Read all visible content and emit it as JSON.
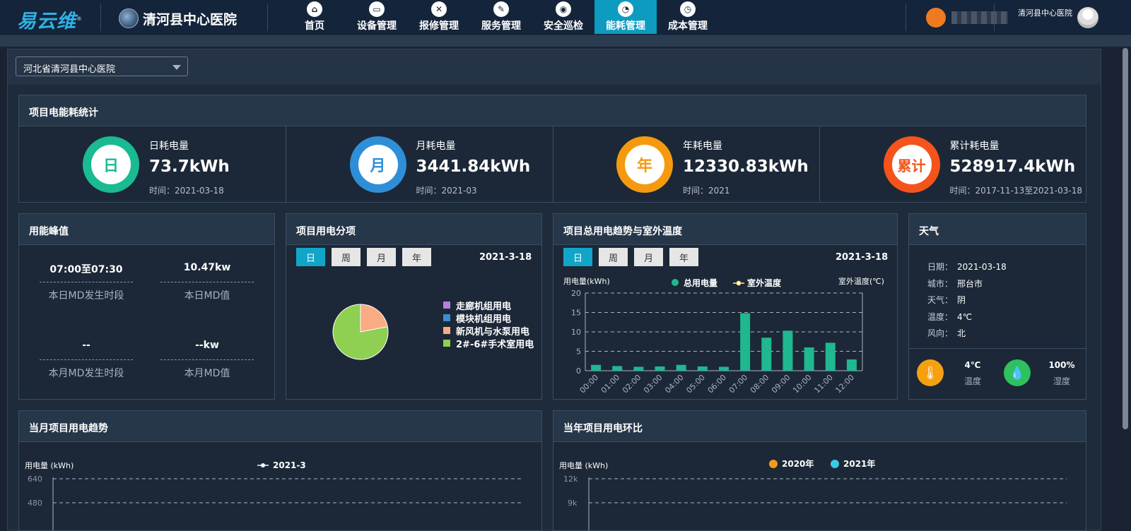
{
  "header": {
    "logo": "易云维",
    "hospital": "清河县中心医院",
    "nav": [
      {
        "label": "首页",
        "icon": "home-icon",
        "glyph": "⌂"
      },
      {
        "label": "设备管理",
        "icon": "monitor-icon",
        "glyph": "▭"
      },
      {
        "label": "报修管理",
        "icon": "tools-icon",
        "glyph": "✕"
      },
      {
        "label": "服务管理",
        "icon": "edit-icon",
        "glyph": "✎"
      },
      {
        "label": "安全巡检",
        "icon": "location-pin-icon",
        "glyph": "◉"
      },
      {
        "label": "能耗管理",
        "icon": "pie-chart-icon",
        "glyph": "◔"
      },
      {
        "label": "成本管理",
        "icon": "gauge-icon",
        "glyph": "◷"
      }
    ],
    "user_org": "清河县中心医院"
  },
  "selector": {
    "value": "河北省清河县中心医院"
  },
  "stats": {
    "title": "项目电能耗统计",
    "items": [
      {
        "badge": "日",
        "label": "日耗电量",
        "value": "73.7kWh",
        "time": "时间：2021-03-18",
        "color": "#1aba92"
      },
      {
        "badge": "月",
        "label": "月耗电量",
        "value": "3441.84kWh",
        "time": "时间：2021-03",
        "color": "#2e8fd8"
      },
      {
        "badge": "年",
        "label": "年耗电量",
        "value": "12330.83kWh",
        "time": "时间：2021",
        "color": "#f59a0e"
      },
      {
        "badge": "累计",
        "label": "累计耗电量",
        "value": "528917.4kWh",
        "time": "时间：2017-11-13至2021-03-18",
        "color": "#f4541c"
      }
    ]
  },
  "peak": {
    "title": "用能峰值",
    "cells": [
      {
        "value": "07:00至07:30",
        "desc": "本日MD发生时段"
      },
      {
        "value": "10.47kw",
        "desc": "本日MD值"
      },
      {
        "value": "--",
        "desc": "本月MD发生时段"
      },
      {
        "value": "--kw",
        "desc": "本月MD值"
      }
    ]
  },
  "breakdown": {
    "title": "项目用电分项",
    "tabs": [
      "日",
      "周",
      "月",
      "年"
    ],
    "active_tab": "日",
    "date": "2021-3-18"
  },
  "trend": {
    "title": "项目总用电趋势与室外温度",
    "tabs": [
      "日",
      "周",
      "月",
      "年"
    ],
    "active_tab": "日",
    "date": "2021-3-18",
    "legend_total": "总用电量",
    "legend_temp": "室外温度"
  },
  "weather": {
    "title": "天气",
    "rows": [
      {
        "k": "日期：",
        "v": "2021-03-18"
      },
      {
        "k": "城市：",
        "v": "邢台市"
      },
      {
        "k": "天气：",
        "v": "阴"
      },
      {
        "k": "温度：",
        "v": "4℃"
      },
      {
        "k": "风向：",
        "v": "北"
      }
    ],
    "temp_value": "4℃",
    "temp_label": "温度",
    "humidity_value": "100%",
    "humidity_label": "湿度"
  },
  "monthly": {
    "title": "当月项目用电趋势",
    "legend": "2021-3"
  },
  "yearly": {
    "title": "当年项目用电环比",
    "legend_a": "2020年",
    "legend_b": "2021年"
  },
  "chart_data": [
    {
      "type": "pie",
      "title": "项目用电分项",
      "categories": [
        "走廊机组用电",
        "模块机组用电",
        "新风机与水泵用电",
        "2#-6#手术室用电"
      ],
      "values": [
        0,
        0,
        22,
        78
      ],
      "colors": [
        "#b57fdc",
        "#3a8fd0",
        "#f9ab84",
        "#8fcf52"
      ]
    },
    {
      "type": "bar",
      "title": "项目总用电趋势与室外温度",
      "categories": [
        "00:00",
        "01:00",
        "02:00",
        "03:00",
        "04:00",
        "05:00",
        "06:00",
        "07:00",
        "08:00",
        "09:00",
        "10:00",
        "11:00",
        "12:00"
      ],
      "series": [
        {
          "name": "总用电量",
          "values": [
            1.5,
            1.2,
            1.0,
            1.1,
            1.5,
            1.1,
            1.0,
            14.8,
            8.5,
            10.3,
            6.0,
            7.2,
            2.9
          ]
        }
      ],
      "ylabel": "用电量(kWh)",
      "y2label": "室外温度(℃)",
      "yticks": [
        0,
        5,
        10,
        15,
        20
      ],
      "ylim": [
        0,
        20
      ],
      "color": "#1fb890"
    },
    {
      "type": "line",
      "title": "当月项目用电趋势",
      "series": [
        {
          "name": "2021-3",
          "values": []
        }
      ],
      "ylabel": "用电量 (kWh)",
      "yticks_visible": [
        "640",
        "480"
      ]
    },
    {
      "type": "bar",
      "title": "当年项目用电环比",
      "series": [
        {
          "name": "2020年",
          "values": []
        },
        {
          "name": "2021年",
          "values": []
        }
      ],
      "colors": [
        "#f39a1c",
        "#3ac9e8"
      ],
      "ylabel": "用电量 (kWh)",
      "yticks_visible": [
        "12k",
        "9k"
      ]
    }
  ]
}
